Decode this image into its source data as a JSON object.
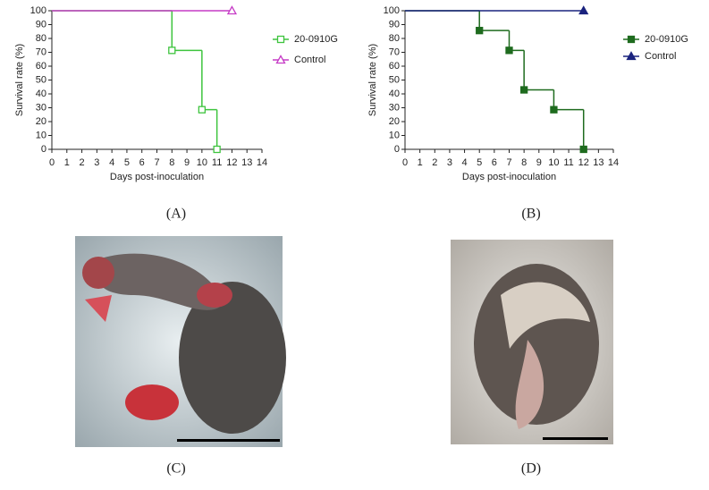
{
  "chart_data": [
    {
      "type": "step",
      "panel_label": "(A)",
      "x_label": "Days post-inoculation",
      "y_label": "Survival rate (%)",
      "xlim": [
        0,
        14
      ],
      "xticks": [
        0,
        1,
        2,
        3,
        4,
        5,
        6,
        7,
        8,
        9,
        10,
        11,
        12,
        13,
        14
      ],
      "ylim": [
        0,
        100
      ],
      "yticks": [
        0,
        10,
        20,
        30,
        40,
        50,
        60,
        70,
        80,
        90,
        100
      ],
      "legend": "right",
      "series": [
        {
          "name": "20-0910G",
          "color": "#3ec43e",
          "marker": "square-open",
          "x": [
            0,
            8,
            10,
            11
          ],
          "values": [
            100,
            71.4,
            28.6,
            0
          ]
        },
        {
          "name": "Control",
          "color": "#c63cc6",
          "marker": "triangle-open",
          "x": [
            0,
            12
          ],
          "values": [
            100,
            100
          ]
        }
      ]
    },
    {
      "type": "step",
      "panel_label": "(B)",
      "x_label": "Days post-inoculation",
      "y_label": "Survival rate (%)",
      "xlim": [
        0,
        14
      ],
      "xticks": [
        0,
        1,
        2,
        3,
        4,
        5,
        6,
        7,
        8,
        9,
        10,
        11,
        12,
        13,
        14
      ],
      "ylim": [
        0,
        100
      ],
      "yticks": [
        0,
        10,
        20,
        30,
        40,
        50,
        60,
        70,
        80,
        90,
        100
      ],
      "legend": "right",
      "series": [
        {
          "name": "20-0910G",
          "color": "#1e6b1e",
          "marker": "square",
          "x": [
            0,
            5,
            7,
            8,
            10,
            12
          ],
          "values": [
            100,
            85.7,
            71.4,
            42.9,
            28.6,
            0
          ]
        },
        {
          "name": "Control",
          "color": "#1a237e",
          "marker": "triangle",
          "x": [
            0,
            12
          ],
          "values": [
            100,
            100
          ]
        }
      ]
    }
  ],
  "panels": [
    {
      "label": "(C)"
    },
    {
      "label": "(D)"
    }
  ]
}
